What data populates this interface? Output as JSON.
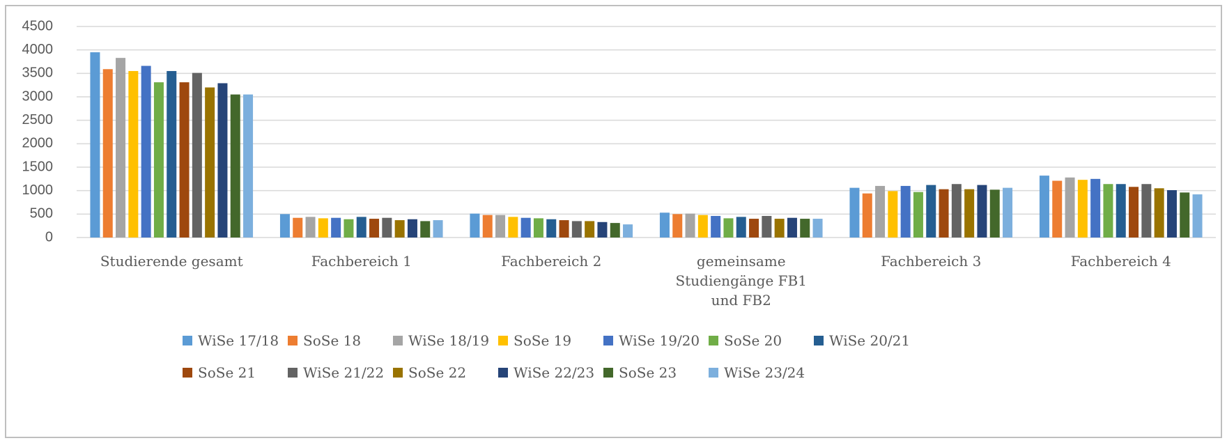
{
  "chart_data": {
    "type": "bar",
    "categories": [
      "Studierende gesamt",
      "Fachbereich 1",
      "Fachbereich 2",
      "gemeinsame Studiengänge FB1 und FB2",
      "Fachbereich 3",
      "Fachbereich 4"
    ],
    "series": [
      {
        "name": "WiSe 17/18",
        "color": "#5b9bd5",
        "values": [
          3950,
          500,
          510,
          530,
          1060,
          1320
        ]
      },
      {
        "name": "SoSe 18",
        "color": "#ed7d31",
        "values": [
          3590,
          420,
          480,
          500,
          940,
          1210
        ]
      },
      {
        "name": "WiSe 18/19",
        "color": "#a5a5a5",
        "values": [
          3830,
          440,
          480,
          510,
          1100,
          1280
        ]
      },
      {
        "name": "SoSe 19",
        "color": "#ffc000",
        "values": [
          3550,
          410,
          440,
          480,
          990,
          1230
        ]
      },
      {
        "name": "WiSe 19/20",
        "color": "#4472c4",
        "values": [
          3660,
          420,
          420,
          460,
          1100,
          1250
        ]
      },
      {
        "name": "SoSe 20",
        "color": "#70ad47",
        "values": [
          3310,
          390,
          410,
          410,
          970,
          1140
        ]
      },
      {
        "name": "WiSe 20/21",
        "color": "#255e91",
        "values": [
          3550,
          440,
          390,
          440,
          1120,
          1140
        ]
      },
      {
        "name": "SoSe 21",
        "color": "#9e480e",
        "values": [
          3310,
          400,
          370,
          400,
          1030,
          1080
        ]
      },
      {
        "name": "WiSe 21/22",
        "color": "#636363",
        "values": [
          3510,
          420,
          350,
          460,
          1140,
          1140
        ]
      },
      {
        "name": "SoSe 22",
        "color": "#997300",
        "values": [
          3200,
          370,
          350,
          400,
          1030,
          1050
        ]
      },
      {
        "name": "WiSe 22/23",
        "color": "#264478",
        "values": [
          3290,
          390,
          330,
          420,
          1120,
          1010
        ]
      },
      {
        "name": "SoSe 23",
        "color": "#43682b",
        "values": [
          3050,
          350,
          310,
          400,
          1020,
          960
        ]
      },
      {
        "name": "WiSe 23/24",
        "color": "#7cafdd",
        "values": [
          3050,
          370,
          280,
          400,
          1060,
          920
        ]
      }
    ],
    "ylim": [
      0,
      4500
    ],
    "yticks": [
      0,
      500,
      1000,
      1500,
      2000,
      2500,
      3000,
      3500,
      4000,
      4500
    ],
    "grid": true,
    "legend": "bottom"
  }
}
